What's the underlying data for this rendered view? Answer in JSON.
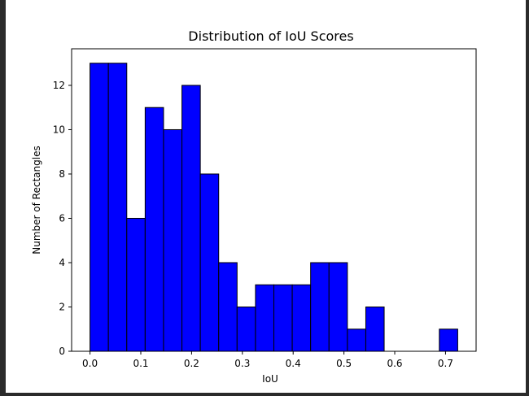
{
  "chart_data": {
    "type": "bar",
    "title": "Distribution of IoU Scores",
    "xlabel": "IoU",
    "ylabel": "Number of Rectangles",
    "bin_start": 0.0,
    "bin_width": 0.0362,
    "values": [
      13,
      13,
      6,
      11,
      10,
      12,
      8,
      4,
      2,
      3,
      3,
      3,
      4,
      4,
      1,
      2,
      0,
      0,
      0,
      1
    ],
    "xlim": [
      -0.0362,
      0.7602
    ],
    "ylim": [
      0,
      13.65
    ],
    "x_ticks": [
      0.0,
      0.1,
      0.2,
      0.3,
      0.4,
      0.5,
      0.6,
      0.7
    ],
    "x_tick_labels": [
      "0.0",
      "0.1",
      "0.2",
      "0.3",
      "0.4",
      "0.5",
      "0.6",
      "0.7"
    ],
    "y_ticks": [
      0,
      2,
      4,
      6,
      8,
      10,
      12
    ],
    "y_tick_labels": [
      "0",
      "2",
      "4",
      "6",
      "8",
      "10",
      "12"
    ],
    "grid": false,
    "bar_color": "#0000ff",
    "edge_color": "#000000"
  }
}
